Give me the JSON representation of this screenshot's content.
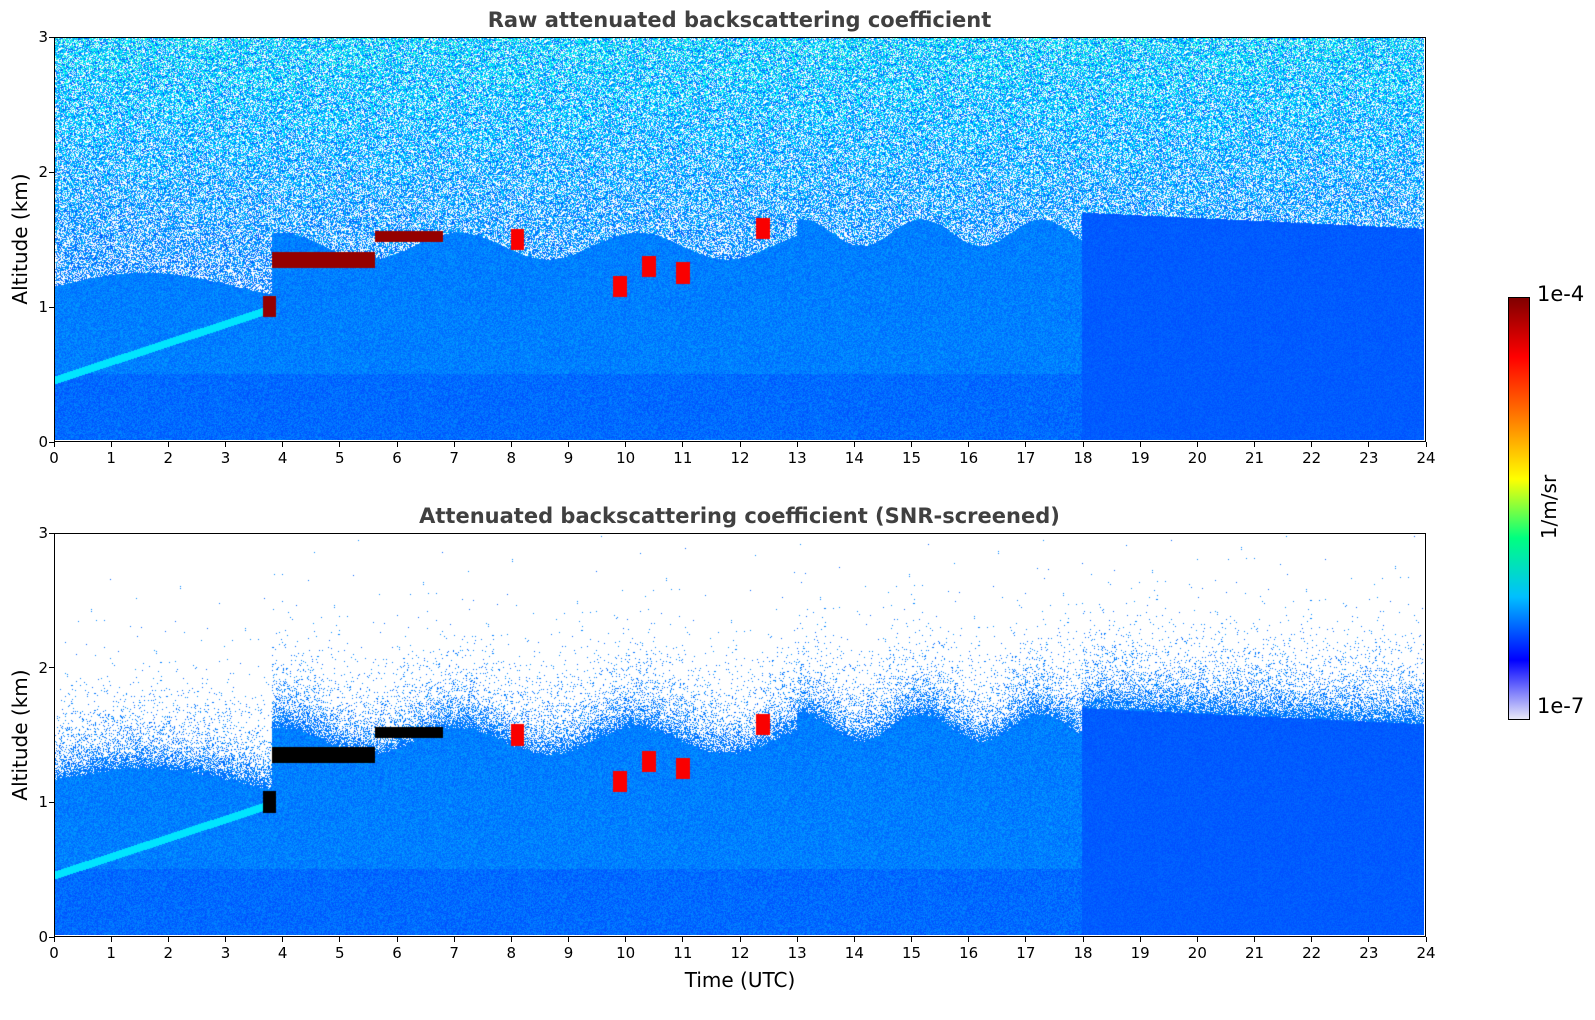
{
  "chart_data": [
    {
      "type": "heatmap",
      "title": "Raw attenuated backscattering coefficient",
      "xlabel": "",
      "ylabel": "Altitude (km)",
      "xlim": [
        0,
        24
      ],
      "ylim": [
        0,
        3
      ],
      "xticks": [
        "0",
        "1",
        "2",
        "3",
        "4",
        "5",
        "6",
        "7",
        "8",
        "9",
        "10",
        "11",
        "12",
        "13",
        "14",
        "15",
        "16",
        "17",
        "18",
        "19",
        "20",
        "21",
        "22",
        "23",
        "24"
      ],
      "yticks": [
        "0",
        "1",
        "2",
        "3"
      ],
      "screened": false,
      "features": [
        {
          "kind": "elevated-layer",
          "x_start": 3.8,
          "x_end": 5.6,
          "y_center": 1.35,
          "thickness": 0.12,
          "level": "max"
        },
        {
          "kind": "elevated-layer",
          "x_start": 5.6,
          "x_end": 6.8,
          "y_center": 1.52,
          "thickness": 0.08,
          "level": "max"
        },
        {
          "kind": "cloud-patch",
          "x": 3.75,
          "y": 1.0,
          "level": "max"
        },
        {
          "kind": "cloud-patch",
          "x": 8.1,
          "y": 1.5,
          "level": "high"
        },
        {
          "kind": "cloud-patch",
          "x": 9.9,
          "y": 1.15,
          "level": "high"
        },
        {
          "kind": "cloud-patch",
          "x": 10.4,
          "y": 1.3,
          "level": "high"
        },
        {
          "kind": "cloud-patch",
          "x": 11.0,
          "y": 1.25,
          "level": "high"
        },
        {
          "kind": "cloud-patch",
          "x": 12.4,
          "y": 1.58,
          "level": "high"
        }
      ]
    },
    {
      "type": "heatmap",
      "title": "Attenuated backscattering coefficient (SNR-screened)",
      "xlabel": "Time (UTC)",
      "ylabel": "Altitude (km)",
      "xlim": [
        0,
        24
      ],
      "ylim": [
        0,
        3
      ],
      "xticks": [
        "0",
        "1",
        "2",
        "3",
        "4",
        "5",
        "6",
        "7",
        "8",
        "9",
        "10",
        "11",
        "12",
        "13",
        "14",
        "15",
        "16",
        "17",
        "18",
        "19",
        "20",
        "21",
        "22",
        "23",
        "24"
      ],
      "yticks": [
        "0",
        "1",
        "2",
        "3"
      ],
      "screened": true,
      "features": [
        {
          "kind": "elevated-layer",
          "x_start": 3.8,
          "x_end": 5.6,
          "y_center": 1.35,
          "thickness": 0.12,
          "level": "saturated"
        },
        {
          "kind": "elevated-layer",
          "x_start": 5.6,
          "x_end": 6.8,
          "y_center": 1.52,
          "thickness": 0.08,
          "level": "saturated"
        },
        {
          "kind": "cloud-patch",
          "x": 3.75,
          "y": 1.0,
          "level": "saturated"
        },
        {
          "kind": "cloud-patch",
          "x": 8.1,
          "y": 1.5,
          "level": "high"
        },
        {
          "kind": "cloud-patch",
          "x": 9.9,
          "y": 1.15,
          "level": "high"
        },
        {
          "kind": "cloud-patch",
          "x": 10.4,
          "y": 1.3,
          "level": "high"
        },
        {
          "kind": "cloud-patch",
          "x": 11.0,
          "y": 1.25,
          "level": "high"
        },
        {
          "kind": "cloud-patch",
          "x": 12.4,
          "y": 1.58,
          "level": "high"
        }
      ]
    }
  ],
  "colorbar": {
    "max_label": "1e-4",
    "min_label": "1e-7",
    "unit": "1/m/sr",
    "colormap": "jet",
    "colors": [
      "#e8e8f8",
      "#0000ff",
      "#00bfff",
      "#00ff80",
      "#ffff00",
      "#ff8000",
      "#ff0000",
      "#800000"
    ]
  }
}
